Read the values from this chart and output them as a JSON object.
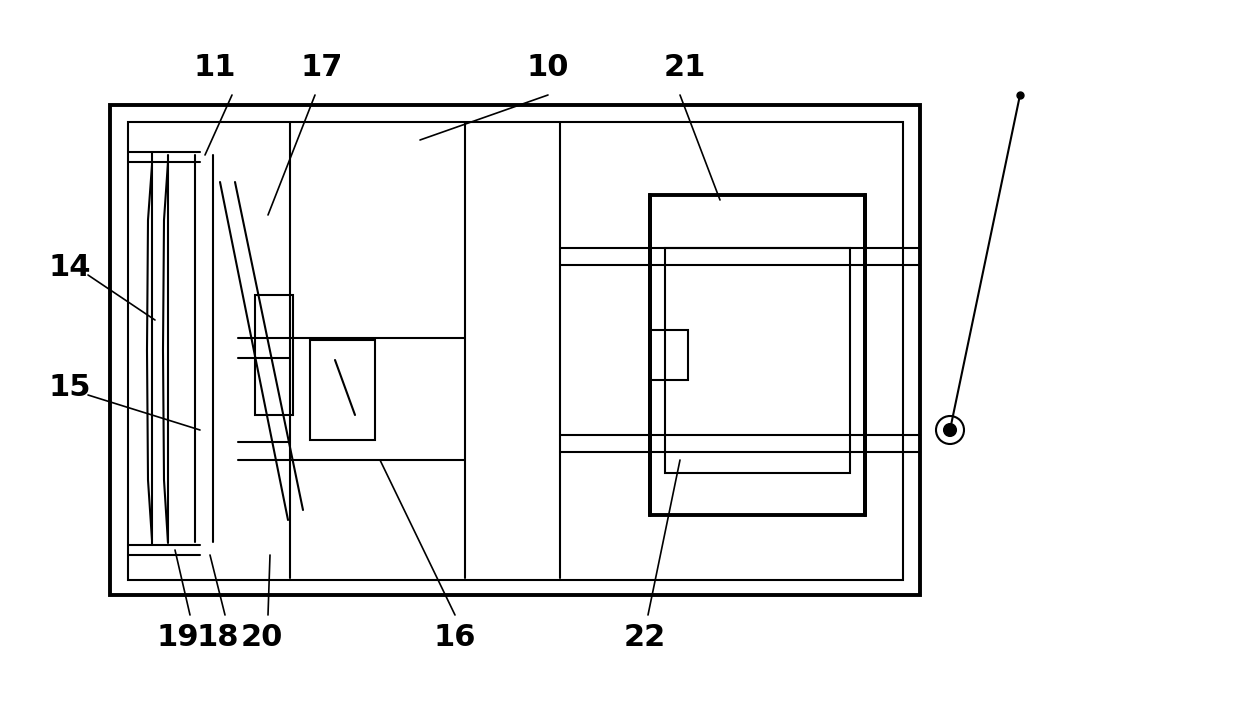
{
  "bg_color": "#ffffff",
  "lc": "#000000",
  "lw": 1.5,
  "tlw": 2.8,
  "fig_width": 12.4,
  "fig_height": 7.02,
  "dpi": 100
}
